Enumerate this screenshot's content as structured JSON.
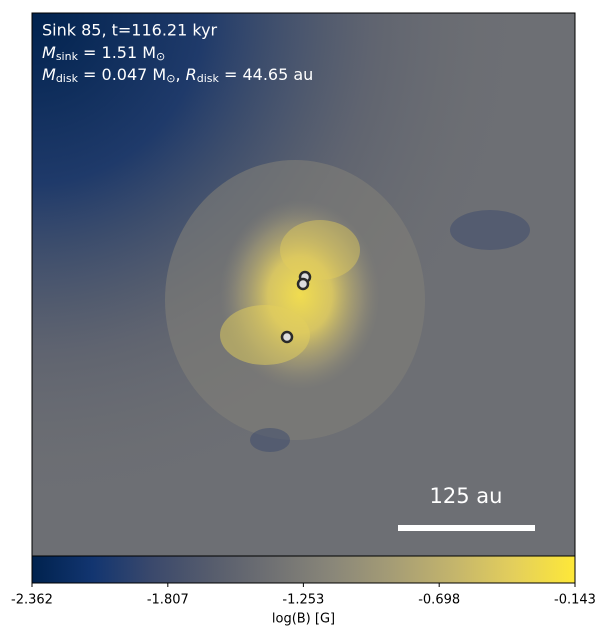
{
  "chart_data": {
    "type": "image",
    "annotation": "Sink 85, t=116.21 kyr",
    "mass_sink": {
      "symbol": "M",
      "subscript": "sink",
      "text": " = 1.51 M",
      "unit_subscript": "⊙"
    },
    "mass_disk": {
      "symbol": "M",
      "subscript": "disk",
      "text": " = 0.047 M",
      "unit_subscript": "⊙",
      "separator": ", ",
      "symbol2": "R",
      "subscript2": "disk",
      "text2": " = 44.65 au"
    },
    "scale_bar": "125 au",
    "colorbar_label": "log(B) [G]",
    "clim": [
      -2.362,
      -0.143
    ],
    "cticks": [
      -2.362,
      -1.807,
      -1.253,
      -0.698,
      -0.143
    ],
    "colormap": [
      "#00224e",
      "#123570",
      "#3b496c",
      "#575d6d",
      "#707173",
      "#8a8779",
      "#a69d75",
      "#c4b56c",
      "#e4cf5b",
      "#fee838"
    ]
  }
}
